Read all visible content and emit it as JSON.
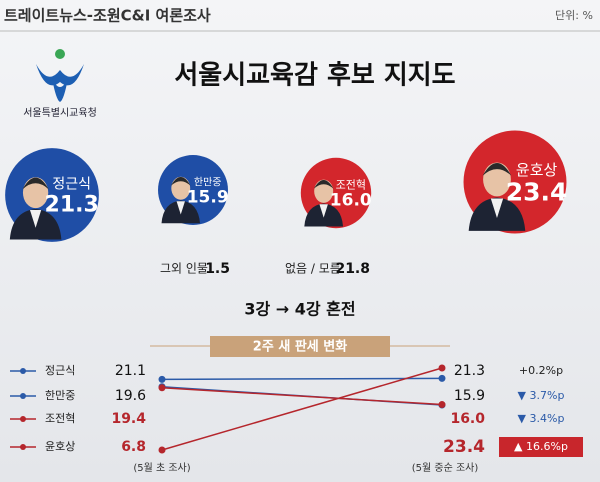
{
  "header": {
    "source": "트레이트뉴스-조원C&I 여론조사",
    "unit": "단위: %"
  },
  "logo": {
    "text": "서울특별시교육청"
  },
  "title": "서울시교육감 후보 지지도",
  "candidates": [
    {
      "name": "정근식",
      "value": 21.3,
      "value_label": "21.3",
      "color": "#1f4ea6"
    },
    {
      "name": "한만중",
      "value": 15.9,
      "value_label": "15.9",
      "color": "#1f4ea6"
    },
    {
      "name": "조전혁",
      "value": 16,
      "value_label": "16.0",
      "color": "#d3262c"
    },
    {
      "name": "윤호상",
      "value": 23.4,
      "value_label": "23.4",
      "color": "#d3262c"
    }
  ],
  "others": [
    {
      "label": "그외 인물",
      "value": 1.5
    },
    {
      "label": "없음 / 모름",
      "value": 21.8
    }
  ],
  "headline": "3강 → 4강 혼전",
  "chart_data": {
    "type": "slope",
    "title": "2주 새 판세 변화",
    "categories": [
      "(5월 초 조사)",
      "(5월 중순 조사)"
    ],
    "series": [
      {
        "name": "정근식",
        "color": "#2b5aa8",
        "values": [
          21.1,
          21.3
        ],
        "value_labels": [
          "21.1",
          "21.3"
        ],
        "change": "+0.2%p"
      },
      {
        "name": "한만중",
        "color": "#2b5aa8",
        "values": [
          19.6,
          15.9
        ],
        "value_labels": [
          "19.6",
          "15.9"
        ],
        "change": "▼ 3.7%p"
      },
      {
        "name": "조전혁",
        "color": "#b5262c",
        "values": [
          19.4,
          16
        ],
        "value_labels": [
          "19.4",
          "16.0"
        ],
        "change": "▼ 3.4%p"
      },
      {
        "name": "윤호상",
        "color": "#b5262c",
        "values": [
          6.8,
          23.4
        ],
        "value_labels": [
          "6.8",
          "23.4"
        ],
        "change": "▲ 16.6%p"
      }
    ]
  }
}
